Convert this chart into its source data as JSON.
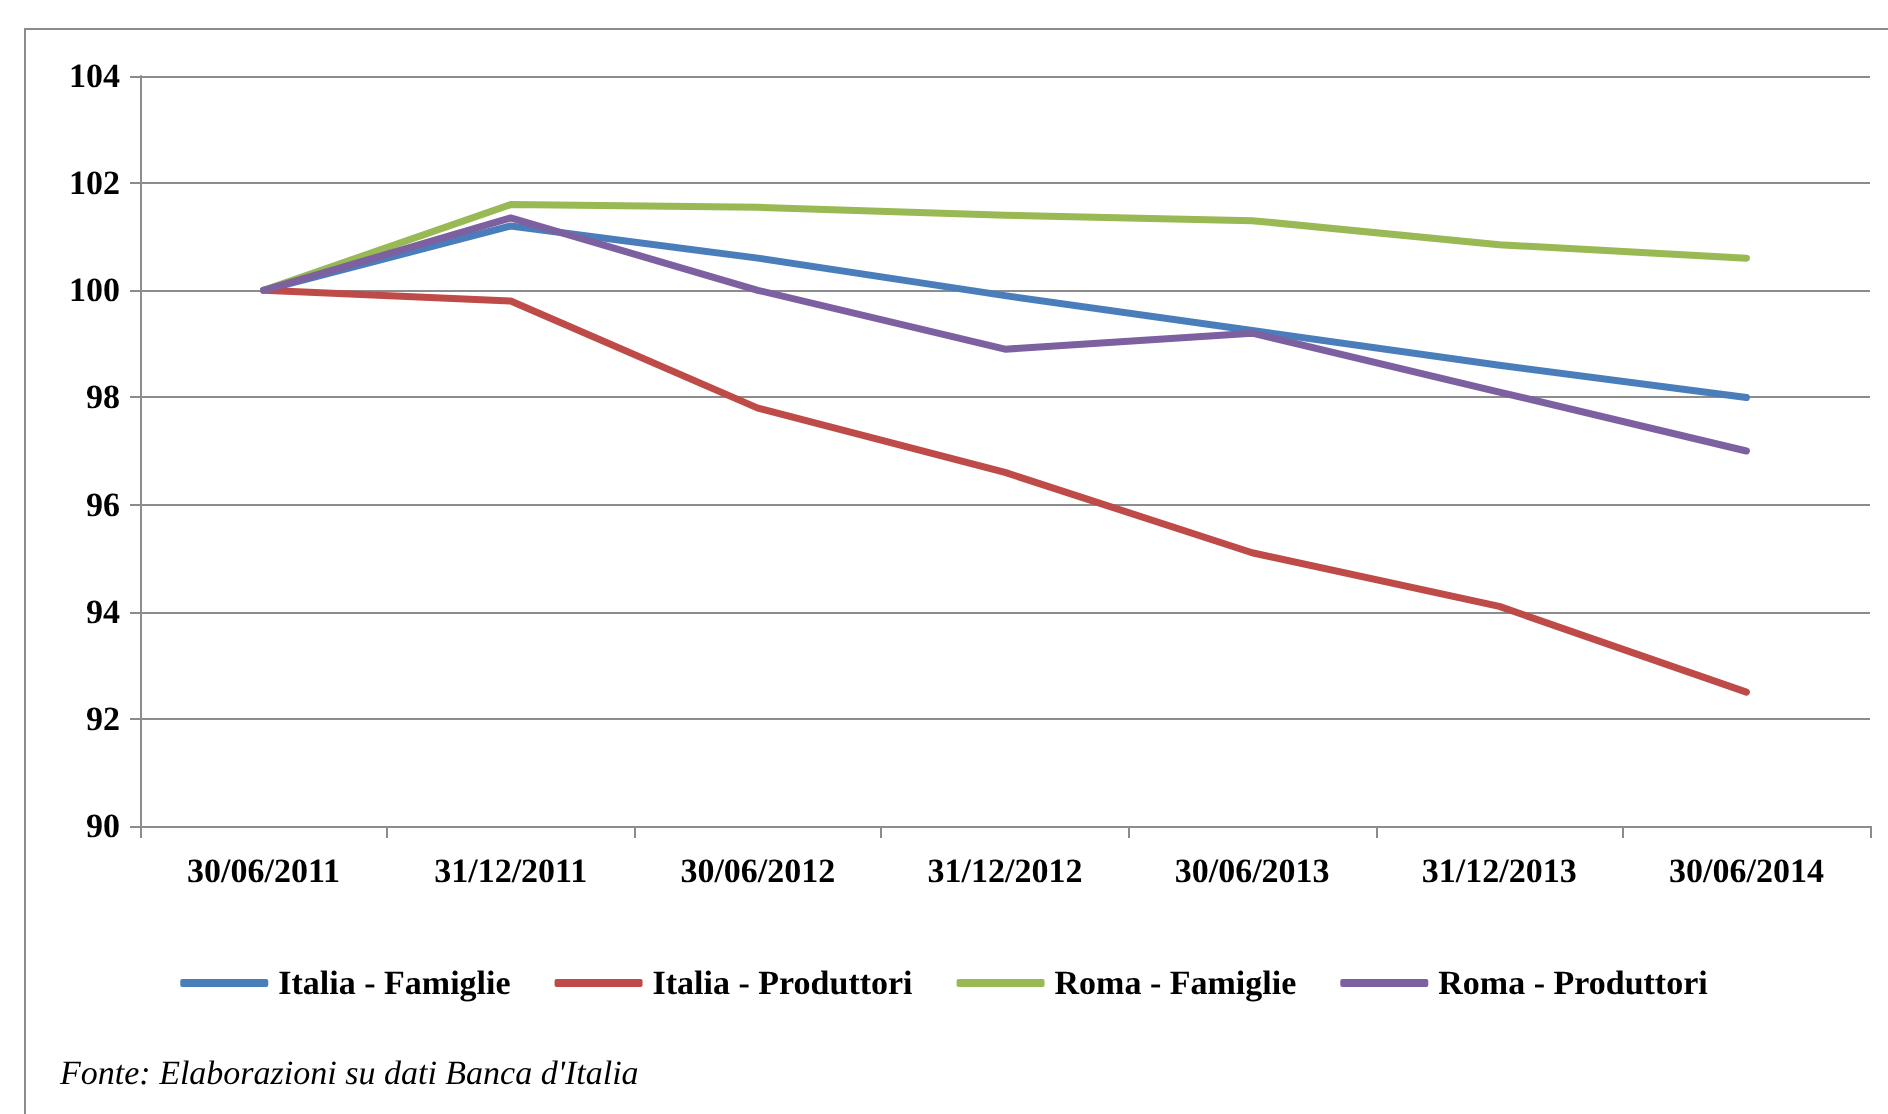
{
  "chart_data": {
    "type": "line",
    "categories": [
      "30/06/2011",
      "31/12/2011",
      "30/06/2012",
      "31/12/2012",
      "30/06/2013",
      "31/12/2013",
      "30/06/2014"
    ],
    "series": [
      {
        "name": "Italia - Famiglie",
        "color": "#4a7ebb",
        "values": [
          100,
          101.2,
          100.6,
          99.9,
          99.25,
          98.6,
          98.0
        ]
      },
      {
        "name": "Italia - Produttori",
        "color": "#be4b48",
        "values": [
          100,
          99.8,
          97.8,
          96.6,
          95.1,
          94.1,
          92.5
        ]
      },
      {
        "name": "Roma - Famiglie",
        "color": "#98b954",
        "values": [
          100,
          101.6,
          101.55,
          101.4,
          101.3,
          100.85,
          100.6
        ]
      },
      {
        "name": "Roma - Produttori",
        "color": "#7d60a0",
        "values": [
          100,
          101.35,
          100.0,
          98.9,
          99.2,
          98.1,
          97.0
        ]
      }
    ],
    "ylim": [
      90,
      104
    ],
    "yticks": [
      90,
      92,
      94,
      96,
      98,
      100,
      102,
      104
    ],
    "grid": "y",
    "legend": "bottom",
    "marker": "none",
    "annotations": [
      "Fonte: Elaborazioni su dati Banca d'Italia"
    ]
  }
}
